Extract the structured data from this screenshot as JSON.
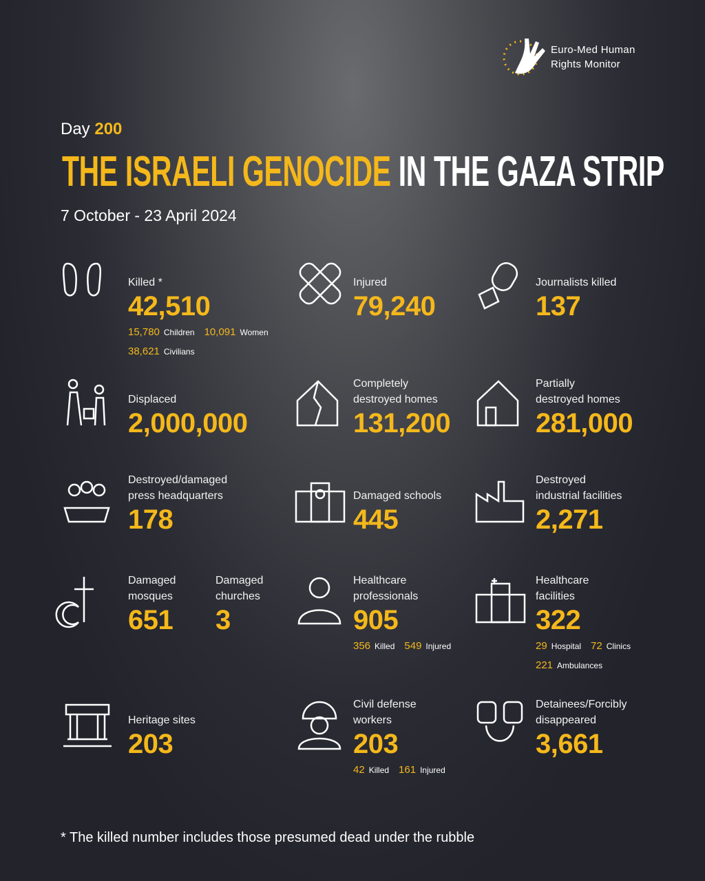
{
  "brand": {
    "line1": "Euro-Med Human",
    "line2": "Rights Monitor"
  },
  "header": {
    "day_label": "Day",
    "day_number": "200",
    "title_highlight": "THE ISRAELI GENOCIDE",
    "title_rest": "IN THE GAZA STRIP",
    "date_range": "7 October - 23 April 2024"
  },
  "stats": [
    {
      "label_lines": [
        "Killed *"
      ],
      "value": "42,510",
      "details": [
        [
          {
            "value": "15,780",
            "label": "Children"
          },
          {
            "value": "10,091",
            "label": "Women"
          }
        ],
        [
          {
            "value": "38,621",
            "label": "Civilians"
          }
        ]
      ]
    },
    {
      "label_lines": [
        "Injured"
      ],
      "value": "79,240"
    },
    {
      "label_lines": [
        "Journalists killed"
      ],
      "value": "137"
    },
    {
      "label_lines": [
        "Displaced"
      ],
      "value": "2,000,000"
    },
    {
      "label_lines": [
        "Completely",
        "destroyed homes"
      ],
      "value": "131,200"
    },
    {
      "label_lines": [
        "Partially",
        "destroyed homes"
      ],
      "value": "281,000"
    },
    {
      "label_lines": [
        "Destroyed/damaged",
        "press headquarters"
      ],
      "value": "178"
    },
    {
      "label_lines": [
        "Damaged schools"
      ],
      "value": "445"
    },
    {
      "label_lines": [
        "Destroyed",
        "industrial facilities"
      ],
      "value": "2,271"
    },
    {
      "label_lines": [
        "Damaged",
        "mosques"
      ],
      "value": "651"
    },
    {
      "label_lines": [
        "Damaged",
        "churches"
      ],
      "value": "3"
    },
    {
      "label_lines": [
        "Healthcare",
        "professionals"
      ],
      "value": "905",
      "details": [
        [
          {
            "value": "356",
            "label": "Killed"
          },
          {
            "value": "549",
            "label": "Injured"
          }
        ]
      ]
    },
    {
      "label_lines": [
        "Healthcare",
        "facilities"
      ],
      "value": "322",
      "details": [
        [
          {
            "value": "29",
            "label": "Hospital"
          },
          {
            "value": "72",
            "label": "Clinics"
          }
        ],
        [
          {
            "value": "221",
            "label": "Ambulances"
          }
        ]
      ]
    },
    {
      "label_lines": [
        "Heritage sites"
      ],
      "value": "203"
    },
    {
      "label_lines": [
        "Civil defense",
        "workers"
      ],
      "value": "203",
      "details": [
        [
          {
            "value": "42",
            "label": "Killed"
          },
          {
            "value": "161",
            "label": "Injured"
          }
        ]
      ]
    },
    {
      "label_lines": [
        "Detainees/Forcibly",
        "disappeared"
      ],
      "value": "3,661"
    }
  ],
  "footnote": "* The killed number includes those presumed dead under the rubble"
}
